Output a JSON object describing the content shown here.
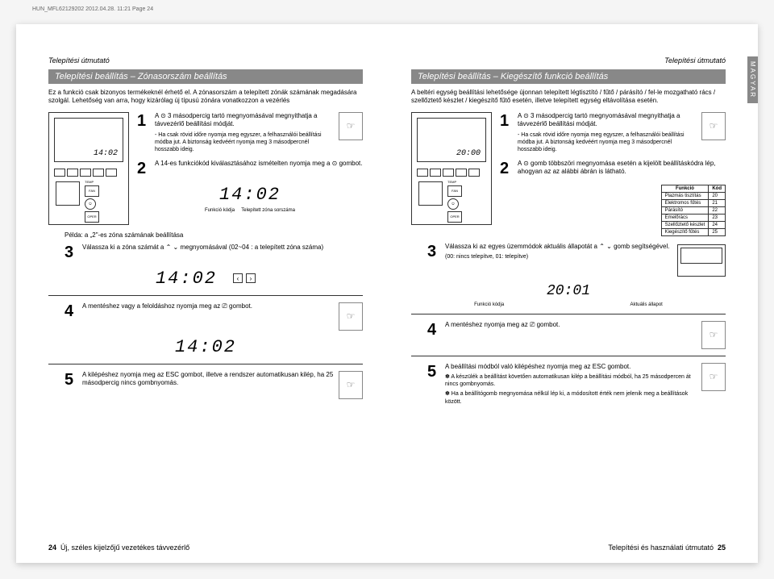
{
  "page_meta": "HUN_MFL62129202 2012.04.28. 11:21 Page 24",
  "side_tab": "MAGYAR",
  "left": {
    "top_label": "Telepítési útmutató",
    "header": "Telepítési beállítás – Zónasorszám beállítás",
    "intro": "Ez a funkció csak bizonyos termékeknél érhető el.\nA zónasorszám a telepített zónák számának megadására szolgál. Lehetőség van arra, hogy kizárólag új típusú zónára vonatkozzon a vezérlés",
    "remote_time": "14:02",
    "steps": {
      "s1": {
        "text": "A ⊙ 3 másodpercig tartó megnyomásával megnyithatja a távvezérlő beállítási módját.",
        "note": "- Ha csak rövid időre nyomja meg egyszer, a felhasználói beállítási módba jut. A biztonság kedvéért nyomja meg 3 másodpercnél hosszabb ideig."
      },
      "s2": {
        "text": "A 14-es funkciókód kiválasztásához ismételten nyomja meg a ⊙ gombot.",
        "display": "14:02",
        "cap_l": "Funkció kódja",
        "cap_r": "Telepített zóna sorszáma"
      },
      "example": "Példa: a „2\"-es zóna számának beállítása",
      "s3": {
        "text": "Válassza ki a zóna számát a ⌃ ⌄ megnyomásával (02~04 : a telepített zóna száma)",
        "display": "14:02"
      },
      "s4": "A mentéshez vagy a feloldáshoz nyomja meg az ⎚ gombot.",
      "s4_display": "14:02",
      "s5": "A kilépéshez nyomja meg az ESC gombot, illetve a rendszer automatikusan kilép, ha 25 másodpercig nincs gombnyomás."
    },
    "footer_num": "24",
    "footer_text": "Új, széles kijelzőjű vezetékes távvezérlő"
  },
  "right": {
    "top_label": "Telepítési útmutató",
    "header": "Telepítési beállítás – Kiegészítő funkció beállítás",
    "intro": "A beltéri egység beállítási lehetősége újonnan telepített légtisztító / fűtő / párásító / fel-le mozgatható rács / szellőztető készlet / kiegészítő fűtő esetén, illetve telepített egység eltávolítása esetén.",
    "remote_time": "20:00",
    "steps": {
      "s1": {
        "text": "A ⊙ 3 másodpercig tartó megnyomásával megnyithatja a távvezérlő beállítási módját.",
        "note": "- Ha csak rövid időre nyomja meg egyszer, a felhasználói beállítási módba jut. A biztonság kedvéért nyomja meg 3 másodpercnél hosszabb ideig."
      },
      "s2": {
        "text": "A ⊙ gomb többszöri megnyomása esetén a kijelölt beállításkódra lép, ahogyan az az alábbi ábrán is látható."
      },
      "table": {
        "h1": "Funkció",
        "h2": "Kód",
        "rows": [
          [
            "Plazmás tisztítás",
            "20"
          ],
          [
            "Elektromos fűtés",
            "21"
          ],
          [
            "Párásító",
            "22"
          ],
          [
            "Emelőrács",
            "23"
          ],
          [
            "Szellőztető készlet",
            "24"
          ],
          [
            "Kiegészítő fűtés",
            "25"
          ]
        ]
      },
      "s3": {
        "text": "Válassza ki az egyes üzemmódok aktuális állapotát a ⌃ ⌄ gomb segítségével.",
        "note": "(00: nincs telepítve, 01: telepítve)",
        "display": "20:01",
        "cap_l": "Funkció kódja",
        "cap_r": "Aktuális állapot"
      },
      "s4": "A mentéshez nyomja meg az ⎚ gombot.",
      "s5": {
        "text": "A beállítási módból való kilépéshez nyomja meg az ESC gombot.",
        "b1": "✽ A készülék a beállítást követően automatikusan kilép a beállítási módból, ha 25 másodpercen át nincs gombnyomás.",
        "b2": "✽ Ha a beállítógomb megnyomása nélkül lép ki, a módosított érték nem jelenik meg a beállítások között."
      }
    },
    "footer_text": "Telepítési és használati útmutató",
    "footer_num": "25"
  }
}
